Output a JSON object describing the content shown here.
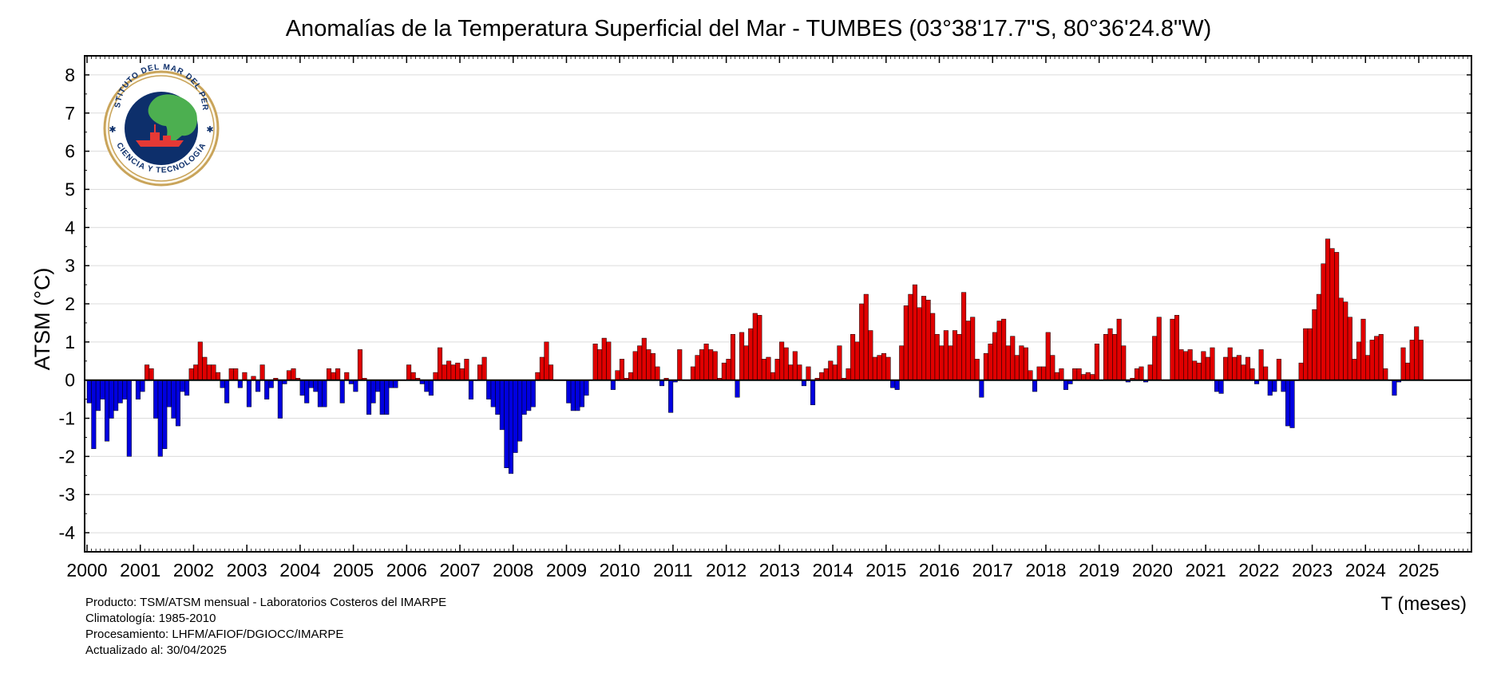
{
  "chart_data": {
    "type": "bar",
    "title": "Anomalías de la Temperatura Superficial del Mar - TUMBES (03°38'17.7\"S, 80°36'24.8\"W)",
    "ylabel": "ATSM (°C)",
    "xlabel": "T (meses)",
    "ylim": [
      -4.5,
      8.5
    ],
    "yticks": [
      -4,
      -3,
      -2,
      -1,
      0,
      1,
      2,
      3,
      4,
      5,
      6,
      7,
      8
    ],
    "xticks": [
      "2000",
      "2001",
      "2002",
      "2003",
      "2004",
      "2005",
      "2006",
      "2007",
      "2008",
      "2009",
      "2010",
      "2011",
      "2012",
      "2013",
      "2014",
      "2015",
      "2016",
      "2017",
      "2018",
      "2019",
      "2020",
      "2021",
      "2022",
      "2023",
      "2024",
      "2025"
    ],
    "x_start": "2000-01",
    "x_end": "2025-12",
    "frequency": "monthly",
    "grid": true,
    "colors": {
      "positive": "#e00000",
      "negative": "#0000e0"
    },
    "values": [
      -0.6,
      -1.8,
      -0.8,
      -0.5,
      -1.6,
      -1.0,
      -0.8,
      -0.6,
      -0.5,
      -2.0,
      0.0,
      -0.5,
      -0.3,
      0.4,
      0.3,
      -1.0,
      -2.0,
      -1.8,
      -0.7,
      -1.0,
      -1.2,
      -0.3,
      -0.4,
      0.3,
      0.4,
      1.0,
      0.6,
      0.4,
      0.4,
      0.2,
      -0.2,
      -0.6,
      0.3,
      0.3,
      -0.2,
      0.2,
      -0.7,
      0.1,
      -0.3,
      0.4,
      -0.5,
      -0.2,
      0.05,
      -1.0,
      -0.1,
      0.25,
      0.3,
      0.05,
      -0.4,
      -0.6,
      -0.2,
      -0.3,
      -0.7,
      -0.7,
      0.3,
      0.2,
      0.3,
      -0.6,
      0.2,
      -0.1,
      -0.3,
      0.8,
      0.05,
      -0.9,
      -0.6,
      -0.3,
      -0.9,
      -0.9,
      -0.2,
      -0.2,
      0.0,
      0.0,
      0.4,
      0.2,
      0.05,
      -0.1,
      -0.3,
      -0.4,
      0.2,
      0.85,
      0.4,
      0.5,
      0.4,
      0.45,
      0.3,
      0.55,
      -0.5,
      0.0,
      0.4,
      0.6,
      -0.5,
      -0.7,
      -0.9,
      -1.3,
      -2.3,
      -2.45,
      -1.9,
      -1.6,
      -0.9,
      -0.8,
      -0.7,
      0.2,
      0.6,
      1.0,
      0.4,
      0.0,
      0.0,
      0.0,
      -0.6,
      -0.8,
      -0.8,
      -0.7,
      -0.4,
      0.0,
      0.95,
      0.8,
      1.1,
      1.0,
      -0.25,
      0.25,
      0.55,
      0.05,
      0.2,
      0.75,
      0.9,
      1.1,
      0.8,
      0.7,
      0.35,
      -0.15,
      0.05,
      -0.85,
      -0.05,
      0.8,
      0.0,
      0.0,
      0.35,
      0.65,
      0.8,
      0.95,
      0.8,
      0.75,
      0.05,
      0.45,
      0.55,
      1.2,
      -0.45,
      1.25,
      0.9,
      1.35,
      1.75,
      1.7,
      0.55,
      0.6,
      0.2,
      0.55,
      1.0,
      0.85,
      0.4,
      0.75,
      0.4,
      -0.15,
      0.35,
      -0.65,
      0.05,
      0.2,
      0.3,
      0.5,
      0.4,
      0.9,
      0.05,
      0.3,
      1.2,
      1.0,
      2.0,
      2.25,
      1.3,
      0.6,
      0.65,
      0.7,
      0.6,
      -0.2,
      -0.25,
      0.9,
      1.95,
      2.25,
      2.5,
      1.9,
      2.2,
      2.1,
      1.75,
      1.2,
      0.9,
      1.3,
      0.9,
      1.3,
      1.2,
      2.3,
      1.55,
      1.65,
      0.55,
      -0.45,
      0.7,
      0.95,
      1.25,
      1.55,
      1.6,
      0.9,
      1.15,
      0.65,
      0.9,
      0.85,
      0.25,
      -0.3,
      0.35,
      0.35,
      1.25,
      0.65,
      0.2,
      0.3,
      -0.25,
      -0.1,
      0.3,
      0.3,
      0.15,
      0.2,
      0.15,
      0.95,
      0.0,
      1.2,
      1.35,
      1.2,
      1.6,
      0.9,
      -0.05,
      0.05,
      0.3,
      0.35,
      -0.05,
      0.4,
      1.15,
      1.65,
      0.0,
      0.0,
      1.6,
      1.7,
      0.8,
      0.75,
      0.8,
      0.5,
      0.45,
      0.75,
      0.6,
      0.85,
      -0.3,
      -0.35,
      0.6,
      0.85,
      0.6,
      0.65,
      0.4,
      0.6,
      0.3,
      -0.1,
      0.8,
      0.35,
      -0.4,
      -0.3,
      0.55,
      -0.3,
      -1.2,
      -1.25,
      0.0,
      0.45,
      1.35,
      1.35,
      1.85,
      2.25,
      3.05,
      3.7,
      3.45,
      3.35,
      2.15,
      2.05,
      1.65,
      0.55,
      1.0,
      1.6,
      0.65,
      1.05,
      1.15,
      1.2,
      0.3,
      0.0,
      -0.4,
      -0.05,
      0.85,
      0.45,
      1.05,
      1.4,
      1.05
    ]
  },
  "logo": {
    "top_text": "INSTITUTO DEL MAR DEL PERÚ",
    "bottom_text": "CIENCIA Y TECNOLOGÍA"
  },
  "footer": {
    "line1": "Producto: TSM/ATSM mensual - Laboratorios Costeros del IMARPE",
    "line2": "Climatología: 1985-2010",
    "line3": "Procesamiento: LHFM/AFIOF/DGIOCC/IMARPE",
    "line4": "Actualizado al: 30/04/2025"
  }
}
